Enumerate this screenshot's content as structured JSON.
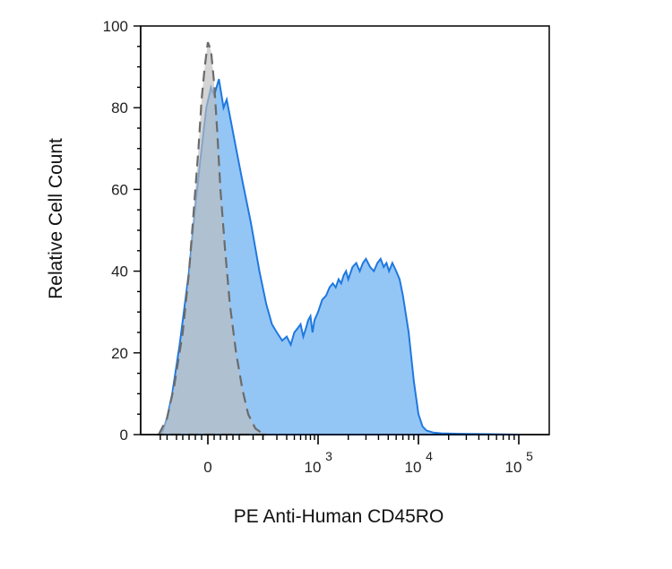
{
  "chart_data": {
    "type": "area",
    "title": "",
    "xlabel": "PE Anti-Human CD45RO",
    "ylabel": "Relative Cell Count",
    "x_scale": "biexponential",
    "xlim": [
      -300,
      100000
    ],
    "ylim": [
      0,
      100
    ],
    "grid": false,
    "y_ticks": [
      {
        "value": 0,
        "label": "0"
      },
      {
        "value": 20,
        "label": "20"
      },
      {
        "value": 40,
        "label": "40"
      },
      {
        "value": 60,
        "label": "60"
      },
      {
        "value": 80,
        "label": "80"
      },
      {
        "value": 100,
        "label": "100"
      }
    ],
    "x_ticks": [
      {
        "value": 0,
        "base": "0",
        "exp": ""
      },
      {
        "value": 1000,
        "base": "10",
        "exp": "3"
      },
      {
        "value": 10000,
        "base": "10",
        "exp": "4"
      },
      {
        "value": 100000,
        "base": "10",
        "exp": "5"
      }
    ],
    "series": [
      {
        "role": "isotype-control",
        "fill": "#bdbdbd",
        "stroke": "#6b6b6b",
        "dashed": true,
        "x": [
          -215,
          -150,
          -110,
          -80,
          -60,
          -45,
          -30,
          -20,
          -10,
          0,
          10,
          20,
          30,
          40,
          55,
          70,
          90,
          110,
          130,
          160,
          190,
          220
        ],
        "y": [
          0,
          4,
          12,
          25,
          40,
          55,
          70,
          82,
          90,
          96,
          94,
          86,
          74,
          60,
          45,
          32,
          20,
          11,
          5,
          1.5,
          0.5,
          0
        ]
      },
      {
        "role": "stained",
        "fill": "#94c6f5",
        "stroke": "#1f78e0",
        "dashed": false,
        "x": [
          -215,
          -180,
          -150,
          -120,
          -90,
          -60,
          -40,
          -20,
          -5,
          10,
          20,
          35,
          50,
          60,
          75,
          90,
          110,
          140,
          180,
          220,
          260,
          300,
          350,
          400,
          450,
          500,
          550,
          600,
          650,
          700,
          750,
          800,
          850,
          900,
          1000,
          1100,
          1200,
          1300,
          1400,
          1500,
          1600,
          1700,
          1800,
          1900,
          2000,
          2200,
          2400,
          2600,
          2800,
          3000,
          3300,
          3600,
          3900,
          4200,
          4500,
          4800,
          5100,
          5500,
          6000,
          6500,
          7000,
          8000,
          9000,
          10000,
          11000,
          12000,
          14000,
          17000,
          25000,
          50000,
          100000
        ],
        "y": [
          0,
          1,
          4,
          10,
          22,
          40,
          56,
          70,
          80,
          85,
          83,
          87,
          80,
          82,
          76,
          70,
          62,
          52,
          40,
          32,
          27,
          25,
          23,
          24,
          22,
          25,
          26,
          27,
          24,
          26,
          28,
          29,
          25,
          28,
          30,
          33,
          34,
          36,
          37,
          36,
          38,
          37,
          39,
          40,
          38,
          41,
          42,
          40,
          42,
          43,
          41,
          40,
          42,
          43,
          41,
          42,
          40,
          42,
          40,
          38,
          34,
          25,
          13,
          5,
          2,
          1,
          0.5,
          0.3,
          0.2,
          0.1,
          0
        ]
      }
    ]
  }
}
